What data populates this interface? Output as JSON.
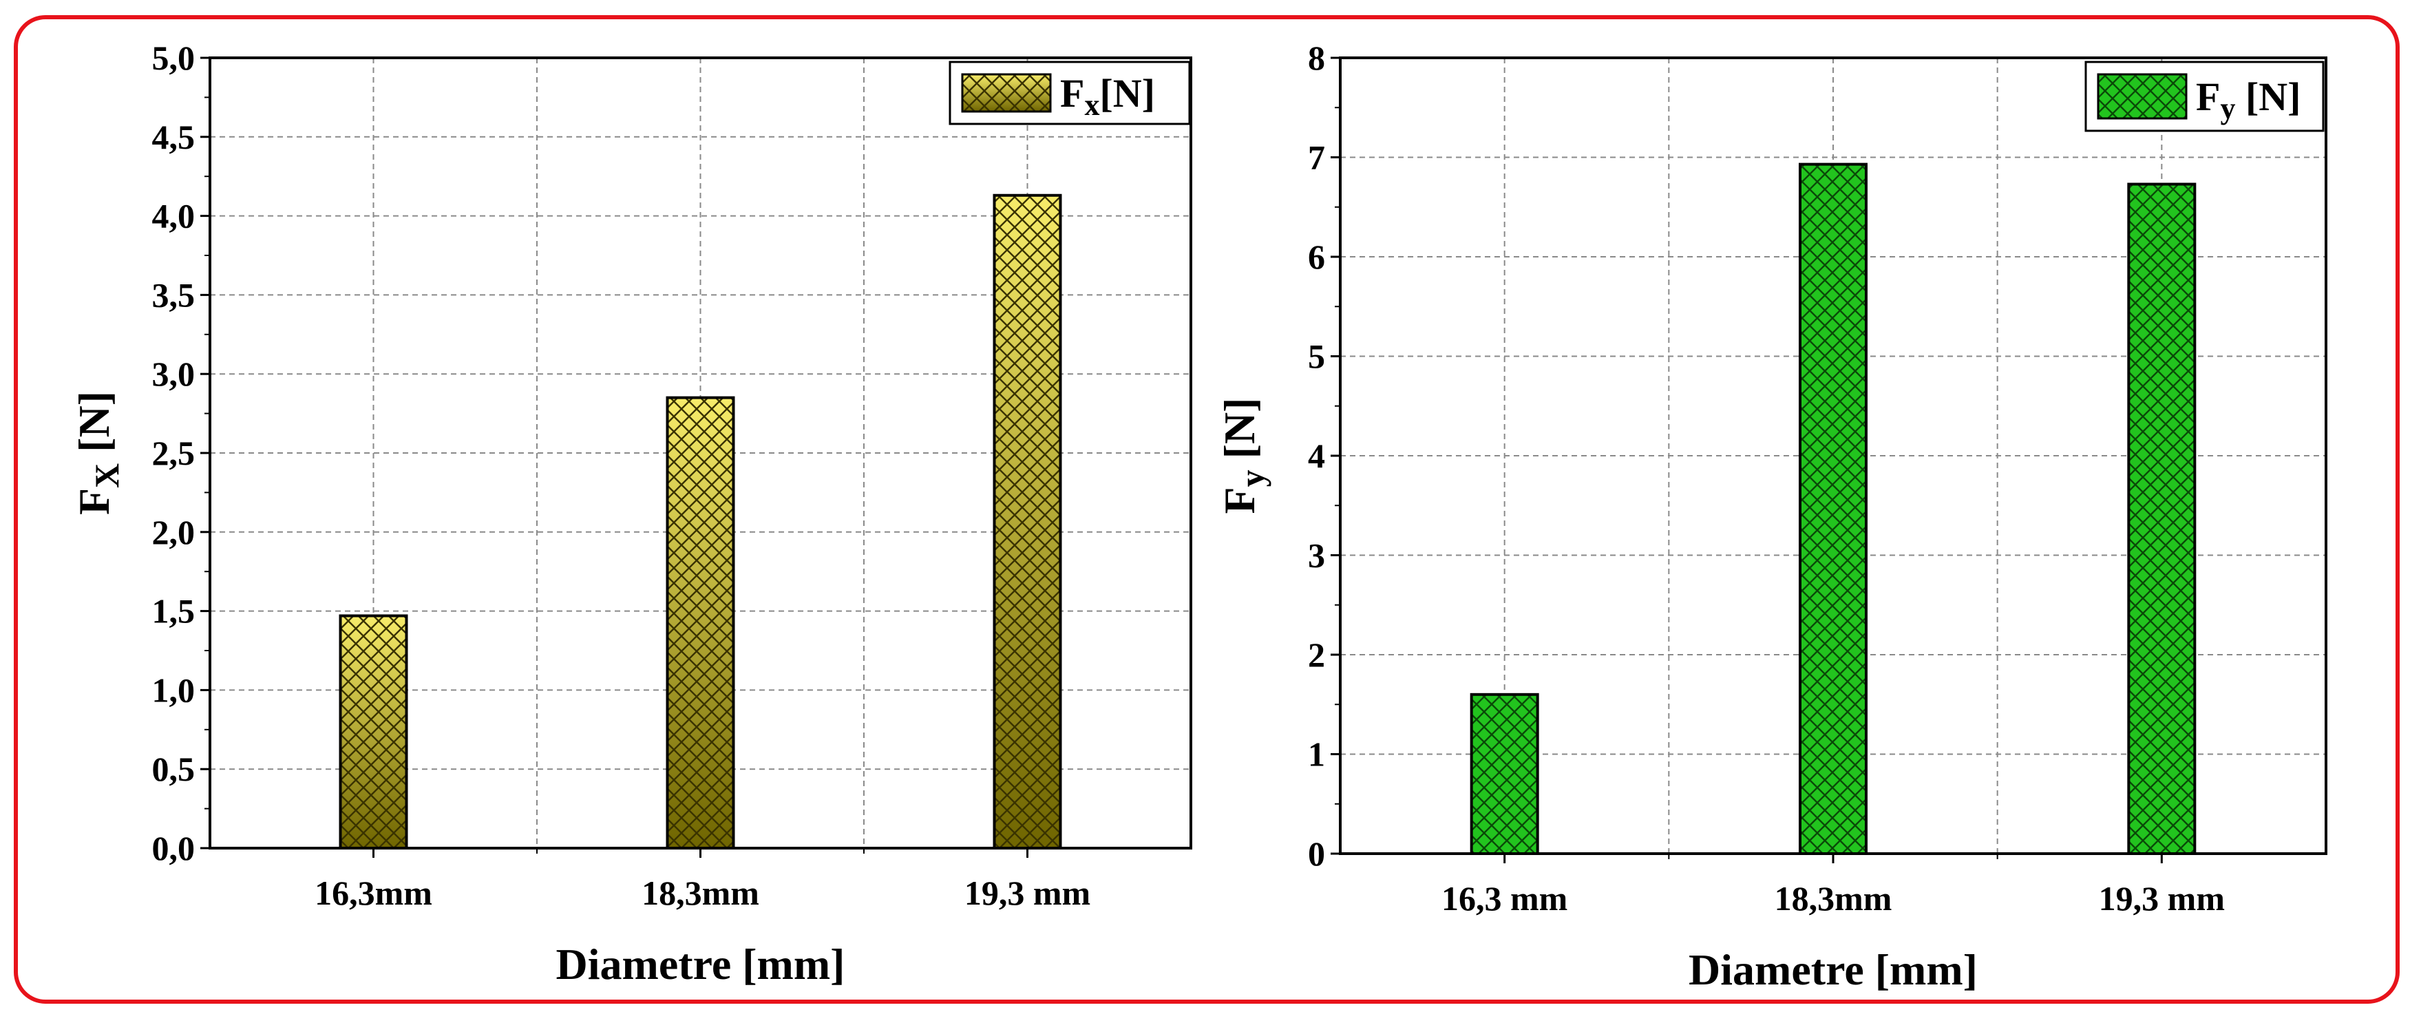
{
  "chart_data": [
    {
      "type": "bar",
      "categories": [
        "16,3mm",
        "18,3mm",
        "19,3 mm"
      ],
      "values": [
        1.47,
        2.85,
        4.13
      ],
      "xlabel": "Diametre [mm]",
      "ylabel": "F",
      "ylabel_sub": "X",
      "ylabel_tail": " [N]",
      "ylim": [
        0,
        5
      ],
      "yticks": [
        "0,0",
        "0,5",
        "1,0",
        "1,5",
        "2,0",
        "2,5",
        "3,0",
        "3,5",
        "4,0",
        "4,5",
        "5,0"
      ],
      "grid": true,
      "legend_position": "top-right",
      "legend": {
        "main": "F",
        "sub": "x",
        "tail": "[N]"
      },
      "color_top": "#f7ec6a",
      "color_bottom": "#6f6500",
      "hatch_color": "#3a3300"
    },
    {
      "type": "bar",
      "categories": [
        "16,3 mm",
        "18,3mm",
        "19,3 mm"
      ],
      "values": [
        1.6,
        6.93,
        6.73
      ],
      "xlabel": "Diametre [mm]",
      "ylabel": "F",
      "ylabel_sub": "y",
      "ylabel_tail": " [N]",
      "ylim": [
        0,
        8
      ],
      "yticks": [
        "0",
        "1",
        "2",
        "3",
        "4",
        "5",
        "6",
        "7",
        "8"
      ],
      "grid": true,
      "legend_position": "top-right",
      "legend": {
        "main": "F",
        "sub": "y",
        "tail": " [N]"
      },
      "color_top": "#22c41e",
      "color_bottom": "#22c41e",
      "hatch_color": "#0a4a08"
    }
  ]
}
